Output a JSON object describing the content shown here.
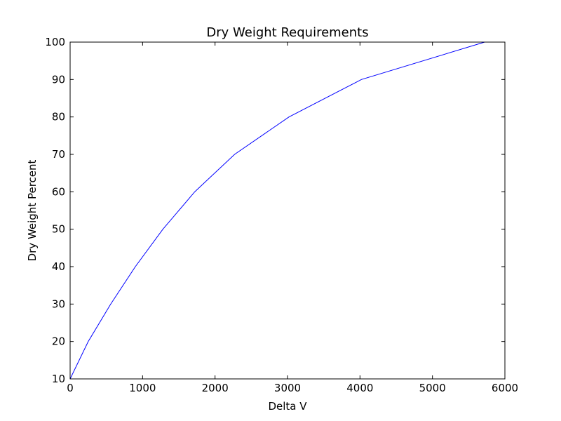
{
  "chart_data": {
    "type": "line",
    "title": "Dry Weight Requirements",
    "xlabel": "Delta V",
    "ylabel": "Dry Weight Percent",
    "xlim": [
      0,
      6000
    ],
    "ylim": [
      10,
      100
    ],
    "xticks": [
      0,
      1000,
      2000,
      3000,
      4000,
      5000,
      6000
    ],
    "yticks": [
      10,
      20,
      30,
      40,
      50,
      60,
      70,
      80,
      90,
      100
    ],
    "grid": false,
    "series": [
      {
        "color": "#0000ff",
        "x": [
          0,
          250,
          560,
          900,
          1280,
          1720,
          2270,
          3020,
          4020,
          5720
        ],
        "y": [
          10,
          20,
          30,
          40,
          50,
          60,
          70,
          80,
          90,
          100
        ]
      }
    ]
  }
}
